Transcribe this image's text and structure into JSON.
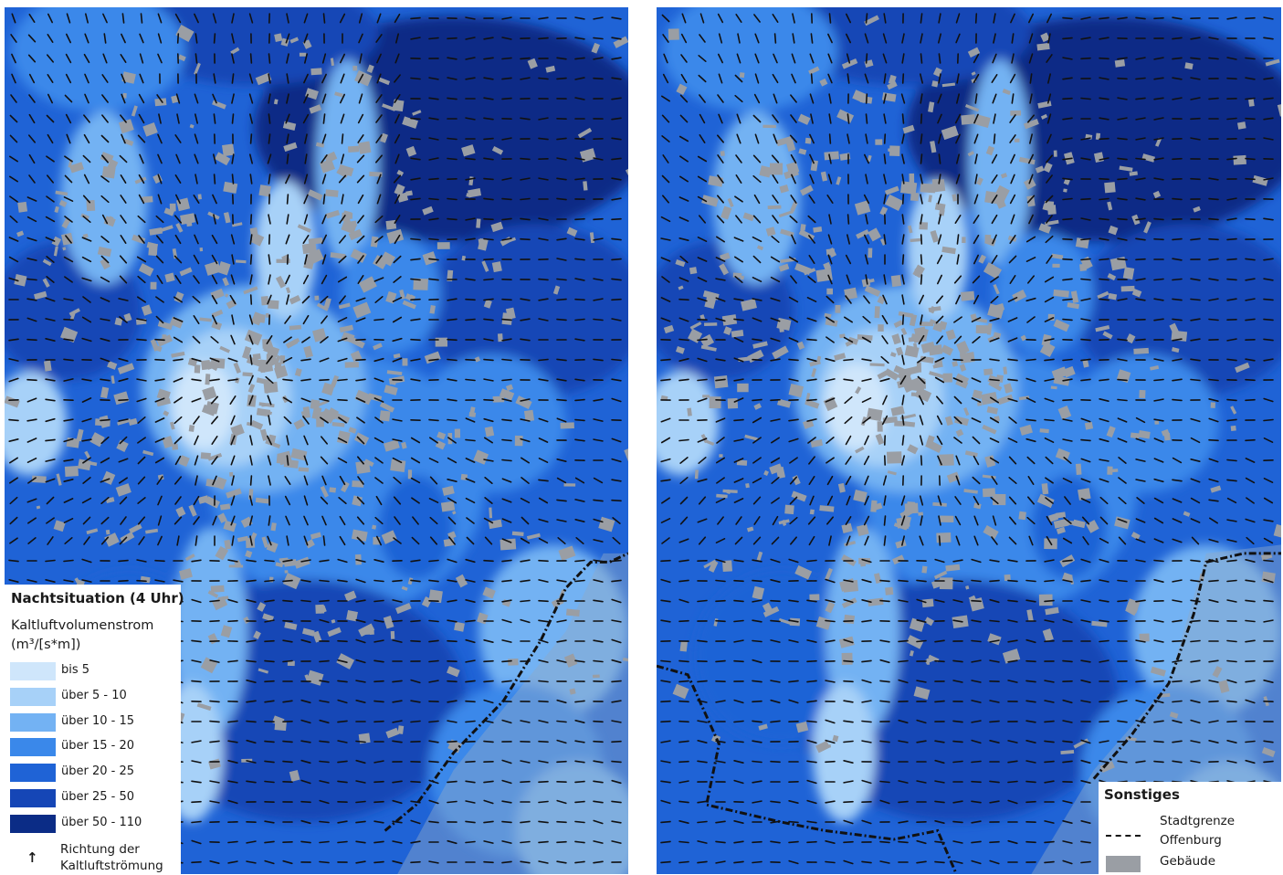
{
  "palette": {
    "c0": "#cfe6fb",
    "c1": "#a7d1f8",
    "c2": "#73b2f3",
    "c3": "#3a88ea",
    "c4": "#1f63d6",
    "c5": "#1546b6",
    "c6": "#0b2c86",
    "building": "#9a9ea4",
    "arrow": "#111111",
    "boundary": "#111111"
  },
  "legend_left": {
    "title": "Nachtsituation (4 Uhr)",
    "subtitle_line1": "Kaltluftvolumenstrom",
    "subtitle_line2": "(m³/[s*m])",
    "classes": [
      {
        "label": "bis 5",
        "color": "#cfe6fb"
      },
      {
        "label": "über 5 - 10",
        "color": "#a7d1f8"
      },
      {
        "label": "über 10 - 15",
        "color": "#73b2f3"
      },
      {
        "label": "über 15 - 20",
        "color": "#3a88ea"
      },
      {
        "label": "über 20 - 25",
        "color": "#1f63d6"
      },
      {
        "label": "über 25 - 50",
        "color": "#1546b6"
      },
      {
        "label": "über 50 - 110",
        "color": "#0b2c86"
      }
    ],
    "arrow_symbol": "↑",
    "arrow_label_line1": "Richtung der",
    "arrow_label_line2": "Kaltluftströmung"
  },
  "legend_right": {
    "title": "Sonstiges",
    "boundary_line1": "Stadtgrenze",
    "boundary_line2": "Offenburg",
    "buildings_label": "Gebäude"
  }
}
